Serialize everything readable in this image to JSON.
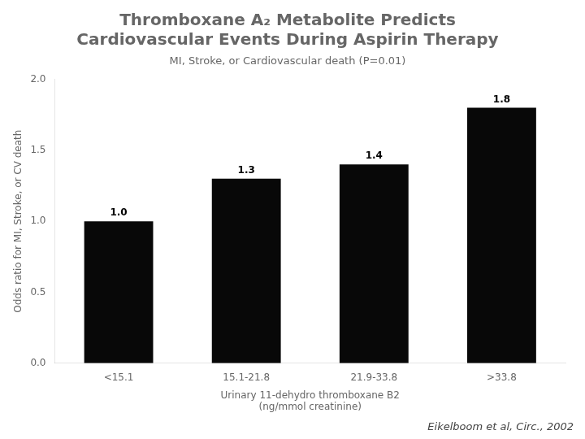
{
  "chart_data": {
    "type": "bar",
    "title": [
      "Thromboxane A₂ Metabolite Predicts",
      "Cardiovascular Events During Aspirin Therapy"
    ],
    "subtitle": "MI, Stroke, or Cardiovascular death (P=0.01)",
    "categories": [
      "<15.1",
      "15.1-21.8",
      "21.9-33.8",
      ">33.8"
    ],
    "values": [
      1.0,
      1.3,
      1.4,
      1.8
    ],
    "value_labels": [
      "1.0",
      "1.3",
      "1.4",
      "1.8"
    ],
    "data_labels": true,
    "color": "#080808",
    "xlabel": [
      "Urinary 11-dehydro thromboxane B2",
      "(ng/mmol creatinine)"
    ],
    "ylabel": "Odds ratio for MI, Stroke, or CV death",
    "ylim": [
      0.0,
      2.0
    ],
    "yticks": [
      {
        "value": 0.0,
        "label": "0.0"
      },
      0.5,
      {
        "value": 1.0,
        "label": "1.0"
      },
      1.5,
      {
        "value": 2.0,
        "label": "2.0"
      }
    ],
    "grid": false,
    "annotations": [
      "Eikelboom et al, Circ., 2002"
    ]
  }
}
